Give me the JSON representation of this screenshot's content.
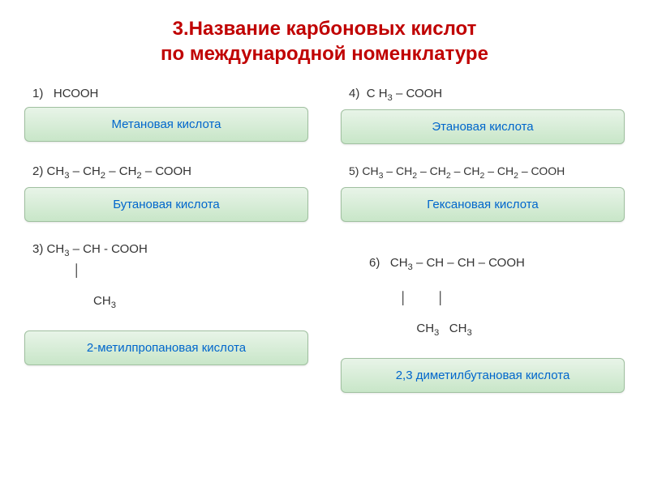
{
  "title_line1": "3.Название карбоновых кислот",
  "title_line2": "по международной номенклатуре",
  "items": [
    {
      "number": "1)",
      "formula": "НСООН",
      "answer": "Метановая кислота"
    },
    {
      "number": "4)",
      "formula_part1": "С Н",
      "formula_sub1": "3",
      "formula_part2": " – СООН",
      "answer": "Этановая кислота"
    },
    {
      "number": "2)",
      "formula_part1": "СН",
      "formula_sub1": "3",
      "formula_part2": " – СН",
      "formula_sub2": "2",
      "formula_part3": " – СН",
      "formula_sub3": "2",
      "formula_part4": " – СООН",
      "answer": "Бутановая кислота"
    },
    {
      "number": "5)",
      "formula_part1": "СН",
      "formula_sub1": "3",
      "formula_part2": " – СН",
      "formula_sub2": "2",
      "formula_part3": " – СН",
      "formula_sub3": "2",
      "formula_part4": " – СН",
      "formula_sub4": "2",
      "formula_part5": " – СН",
      "formula_sub5": "2",
      "formula_part6": " – СООН",
      "answer": "Гексановая кислота"
    },
    {
      "number": "3)",
      "formula_part1": "СН",
      "formula_sub1": "3",
      "formula_part2": " – СН - СООН",
      "branch_line1": "            ׀",
      "branch_part1": "            СН",
      "branch_sub1": "3",
      "answer": "2-метилпропановая кислота"
    },
    {
      "number": "6)",
      "formula_part1": "   СН",
      "formula_sub1": "3",
      "formula_part2": " – СН – СН – СООН",
      "branch_line1": "               ׀         ׀",
      "branch_part1": "              СН",
      "branch_sub1": "3",
      "branch_part2": "   СН",
      "branch_sub2": "3",
      "answer": "2,3 диметилбутановая кислота"
    }
  ],
  "colors": {
    "title": "#c00000",
    "formula_text": "#333333",
    "answer_text": "#0066cc",
    "box_bg_top": "#e8f4e8",
    "box_bg_bottom": "#c8e6c8",
    "box_border": "#a0c0a0",
    "background": "#ffffff"
  },
  "typography": {
    "title_fontsize": 24,
    "formula_fontsize": 15,
    "answer_fontsize": 15
  }
}
